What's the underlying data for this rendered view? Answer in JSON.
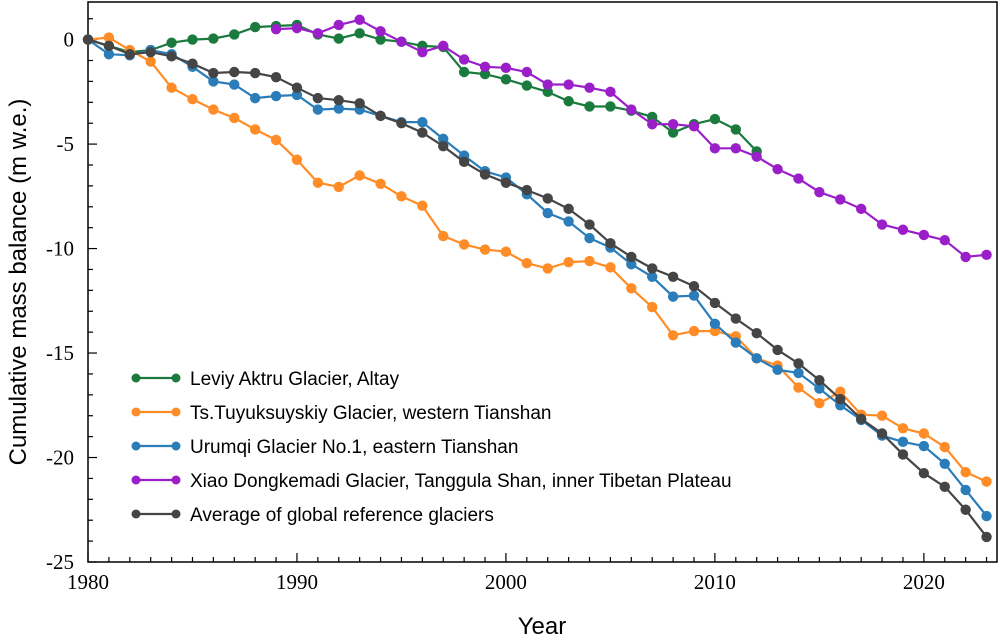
{
  "chart_data": {
    "type": "line",
    "title": "",
    "xlabel": "Year",
    "ylabel": "Cumulative mass balance (m w.e.)",
    "xlim": [
      1980,
      2023.5
    ],
    "ylim": [
      -25,
      1.8
    ],
    "x_ticks": [
      1980,
      1990,
      2000,
      2010,
      2020
    ],
    "y_ticks": [
      0,
      -5,
      -10,
      -15,
      -20,
      -25
    ],
    "grid": false,
    "legend_position": "lower-left",
    "series": [
      {
        "name": "Leviy Aktru Glacier, Altay",
        "color": "#1b7a3e",
        "x": [
          1980,
          1981,
          1982,
          1983,
          1984,
          1985,
          1986,
          1987,
          1988,
          1989,
          1990,
          1991,
          1992,
          1993,
          1994,
          1995,
          1996,
          1997,
          1998,
          1999,
          2000,
          2001,
          2002,
          2003,
          2004,
          2005,
          2006,
          2007,
          2008,
          2009,
          2010,
          2011,
          2012
        ],
        "y": [
          0,
          -0.3,
          -0.6,
          -0.5,
          -0.15,
          0,
          0.05,
          0.25,
          0.6,
          0.65,
          0.7,
          0.25,
          0.05,
          0.3,
          0,
          -0.1,
          -0.3,
          -0.35,
          -1.55,
          -1.65,
          -1.9,
          -2.2,
          -2.5,
          -2.95,
          -3.2,
          -3.2,
          -3.4,
          -3.7,
          -4.45,
          -4.05,
          -3.8,
          -4.3,
          -5.35
        ]
      },
      {
        "name": "Ts.Tuyuksuyskiy Glacier, western Tianshan",
        "color": "#ff8c26",
        "x": [
          1980,
          1981,
          1982,
          1983,
          1984,
          1985,
          1986,
          1987,
          1988,
          1989,
          1990,
          1991,
          1992,
          1993,
          1994,
          1995,
          1996,
          1997,
          1998,
          1999,
          2000,
          2001,
          2002,
          2003,
          2004,
          2005,
          2006,
          2007,
          2008,
          2009,
          2010,
          2011,
          2012,
          2013,
          2014,
          2015,
          2016,
          2017,
          2018,
          2019,
          2020,
          2021,
          2022,
          2023
        ],
        "y": [
          0,
          0.1,
          -0.5,
          -1.05,
          -2.3,
          -2.85,
          -3.35,
          -3.75,
          -4.3,
          -4.8,
          -5.75,
          -6.85,
          -7.05,
          -6.5,
          -6.9,
          -7.5,
          -7.95,
          -9.4,
          -9.8,
          -10.05,
          -10.15,
          -10.7,
          -10.95,
          -10.65,
          -10.6,
          -10.9,
          -11.9,
          -12.8,
          -14.15,
          -13.95,
          -13.95,
          -14.2,
          -15.25,
          -15.6,
          -16.65,
          -17.4,
          -16.85,
          -17.95,
          -18,
          -18.6,
          -18.85,
          -19.5,
          -20.7,
          -21.15
        ]
      },
      {
        "name": "Urumqi Glacier No.1, eastern Tianshan",
        "color": "#2a7db8",
        "x": [
          1980,
          1981,
          1982,
          1983,
          1984,
          1985,
          1986,
          1987,
          1988,
          1989,
          1990,
          1991,
          1992,
          1993,
          1994,
          1995,
          1996,
          1997,
          1998,
          1999,
          2000,
          2001,
          2002,
          2003,
          2004,
          2005,
          2006,
          2007,
          2008,
          2009,
          2010,
          2011,
          2012,
          2013,
          2014,
          2015,
          2016,
          2017,
          2018,
          2019,
          2020,
          2021,
          2022,
          2023
        ],
        "y": [
          0,
          -0.7,
          -0.75,
          -0.5,
          -0.7,
          -1.3,
          -2,
          -2.15,
          -2.8,
          -2.7,
          -2.65,
          -3.35,
          -3.3,
          -3.35,
          -3.65,
          -3.95,
          -3.95,
          -4.75,
          -5.55,
          -6.3,
          -6.6,
          -7.4,
          -8.3,
          -8.7,
          -9.5,
          -9.95,
          -10.75,
          -11.35,
          -12.3,
          -12.25,
          -13.6,
          -14.5,
          -15.25,
          -15.8,
          -15.95,
          -16.7,
          -17.5,
          -18.2,
          -18.95,
          -19.25,
          -19.45,
          -20.3,
          -21.55,
          -22.8
        ]
      },
      {
        "name": "Xiao Dongkemadi Glacier, Tanggula Shan, inner Tibetan Plateau",
        "color": "#9b1fc9",
        "x": [
          1989,
          1990,
          1991,
          1992,
          1993,
          1994,
          1995,
          1996,
          1997,
          1998,
          1999,
          2000,
          2001,
          2002,
          2003,
          2004,
          2005,
          2006,
          2007,
          2008,
          2009,
          2010,
          2011,
          2012,
          2013,
          2014,
          2015,
          2016,
          2017,
          2018,
          2019,
          2020,
          2021,
          2022,
          2023
        ],
        "y": [
          0.5,
          0.55,
          0.3,
          0.7,
          0.95,
          0.4,
          -0.1,
          -0.6,
          -0.3,
          -0.95,
          -1.3,
          -1.35,
          -1.55,
          -2.15,
          -2.15,
          -2.3,
          -2.5,
          -3.35,
          -4.05,
          -4.05,
          -4.15,
          -5.2,
          -5.2,
          -5.6,
          -6.2,
          -6.65,
          -7.3,
          -7.65,
          -8.1,
          -8.85,
          -9.1,
          -9.35,
          -9.6,
          -10.4,
          -10.3
        ]
      },
      {
        "name": "Average of global reference glaciers",
        "color": "#454545",
        "x": [
          1980,
          1981,
          1982,
          1983,
          1984,
          1985,
          1986,
          1987,
          1988,
          1989,
          1990,
          1991,
          1992,
          1993,
          1994,
          1995,
          1996,
          1997,
          1998,
          1999,
          2000,
          2001,
          2002,
          2003,
          2004,
          2005,
          2006,
          2007,
          2008,
          2009,
          2010,
          2011,
          2012,
          2013,
          2014,
          2015,
          2016,
          2017,
          2018,
          2019,
          2020,
          2021,
          2022,
          2023
        ],
        "y": [
          0,
          -0.3,
          -0.7,
          -0.6,
          -0.8,
          -1.15,
          -1.6,
          -1.55,
          -1.6,
          -1.8,
          -2.3,
          -2.8,
          -2.9,
          -3.05,
          -3.65,
          -4,
          -4.45,
          -5.1,
          -5.85,
          -6.45,
          -6.85,
          -7.2,
          -7.6,
          -8.1,
          -8.85,
          -9.75,
          -10.4,
          -10.95,
          -11.35,
          -11.8,
          -12.6,
          -13.35,
          -14.05,
          -14.85,
          -15.5,
          -16.3,
          -17.2,
          -18.15,
          -18.85,
          -19.85,
          -20.75,
          -21.4,
          -22.5,
          -23.8
        ]
      }
    ]
  }
}
